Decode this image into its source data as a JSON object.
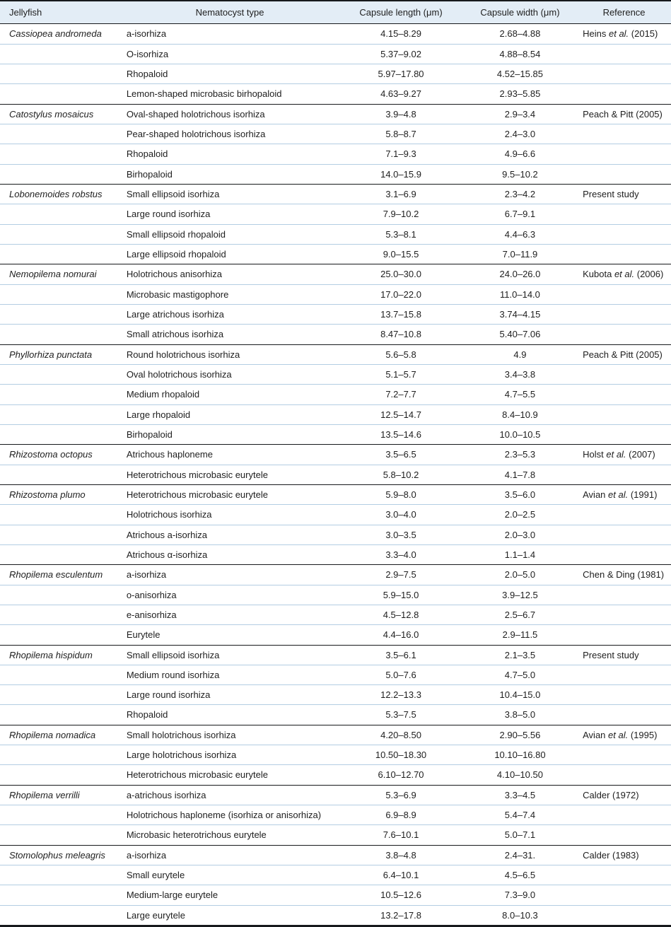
{
  "table": {
    "columns": [
      "Jellyfish",
      "Nematocyst type",
      "Capsule length (μm)",
      "Capsule width (μm)",
      "Reference"
    ],
    "groups": [
      {
        "jellyfish": "Cassiopea andromeda",
        "reference": "Heins et al. (2015)",
        "rows": [
          {
            "type": "a-isorhiza",
            "length": "4.15–8.29",
            "width": "2.68–4.88"
          },
          {
            "type": "O-isorhiza",
            "length": "5.37–9.02",
            "width": "4.88–8.54"
          },
          {
            "type": "Rhopaloid",
            "length": "5.97–17.80",
            "width": "4.52–15.85"
          },
          {
            "type": "Lemon-shaped microbasic birhopaloid",
            "length": "4.63–9.27",
            "width": "2.93–5.85"
          }
        ]
      },
      {
        "jellyfish": "Catostylus mosaicus",
        "reference": "Peach & Pitt (2005)",
        "rows": [
          {
            "type": "Oval-shaped holotrichous isorhiza",
            "length": "3.9–4.8",
            "width": "2.9–3.4"
          },
          {
            "type": "Pear-shaped holotrichous isorhiza",
            "length": "5.8–8.7",
            "width": "2.4–3.0"
          },
          {
            "type": "Rhopaloid",
            "length": "7.1–9.3",
            "width": "4.9–6.6"
          },
          {
            "type": "Birhopaloid",
            "length": "14.0–15.9",
            "width": "9.5–10.2"
          }
        ]
      },
      {
        "jellyfish": "Lobonemoides robstus",
        "reference": "Present study",
        "rows": [
          {
            "type": "Small ellipsoid isorhiza",
            "length": "3.1–6.9",
            "width": "2.3–4.2"
          },
          {
            "type": "Large round isorhiza",
            "length": "7.9–10.2",
            "width": "6.7–9.1"
          },
          {
            "type": "Small ellipsoid rhopaloid",
            "length": "5.3–8.1",
            "width": "4.4–6.3"
          },
          {
            "type": "Large ellipsoid rhopaloid",
            "length": "9.0–15.5",
            "width": "7.0–11.9"
          }
        ]
      },
      {
        "jellyfish": "Nemopilema nomurai",
        "reference": "Kubota et al. (2006)",
        "rows": [
          {
            "type": "Holotrichous anisorhiza",
            "length": "25.0–30.0",
            "width": "24.0–26.0"
          },
          {
            "type": "Microbasic mastigophore",
            "length": "17.0–22.0",
            "width": "11.0–14.0"
          },
          {
            "type": "Large atrichous isorhiza",
            "length": "13.7–15.8",
            "width": "3.74–4.15"
          },
          {
            "type": "Small atrichous isorhiza",
            "length": "8.47–10.8",
            "width": "5.40–7.06"
          }
        ]
      },
      {
        "jellyfish": "Phyllorhiza punctata",
        "reference": "Peach & Pitt (2005)",
        "rows": [
          {
            "type": "Round holotrichous isorhiza",
            "length": "5.6–5.8",
            "width": "4.9"
          },
          {
            "type": "Oval holotrichous isorhiza",
            "length": "5.1–5.7",
            "width": "3.4–3.8"
          },
          {
            "type": "Medium rhopaloid",
            "length": "7.2–7.7",
            "width": "4.7–5.5"
          },
          {
            "type": "Large rhopaloid",
            "length": "12.5–14.7",
            "width": "8.4–10.9"
          },
          {
            "type": "Birhopaloid",
            "length": "13.5–14.6",
            "width": "10.0–10.5"
          }
        ]
      },
      {
        "jellyfish": "Rhizostoma octopus",
        "reference": "Holst et al. (2007)",
        "rows": [
          {
            "type": "Atrichous haploneme",
            "length": "3.5–6.5",
            "width": "2.3–5.3"
          },
          {
            "type": "Heterotrichous microbasic eurytele",
            "length": "5.8–10.2",
            "width": "4.1–7.8"
          }
        ]
      },
      {
        "jellyfish": "Rhizostoma plumo",
        "reference": "Avian et al. (1991)",
        "rows": [
          {
            "type": "Heterotrichous microbasic eurytele",
            "length": "5.9–8.0",
            "width": "3.5–6.0"
          },
          {
            "type": "Holotrichous isorhiza",
            "length": "3.0–4.0",
            "width": "2.0–2.5"
          },
          {
            "type": "Atrichous a-isorhiza",
            "length": "3.0–3.5",
            "width": "2.0–3.0"
          },
          {
            "type": "Atrichous α-isorhiza",
            "length": "3.3–4.0",
            "width": "1.1–1.4"
          }
        ]
      },
      {
        "jellyfish": "Rhopilema esculentum",
        "reference": "Chen & Ding (1981)",
        "rows": [
          {
            "type": "a-isorhiza",
            "length": "2.9–7.5",
            "width": "2.0–5.0"
          },
          {
            "type": "o-anisorhiza",
            "length": "5.9–15.0",
            "width": "3.9–12.5"
          },
          {
            "type": "e-anisorhiza",
            "length": "4.5–12.8",
            "width": "2.5–6.7"
          },
          {
            "type": "Eurytele",
            "length": "4.4–16.0",
            "width": "2.9–11.5"
          }
        ]
      },
      {
        "jellyfish": "Rhopilema hispidum",
        "reference": "Present study",
        "rows": [
          {
            "type": "Small ellipsoid isorhiza",
            "length": "3.5–6.1",
            "width": "2.1–3.5"
          },
          {
            "type": "Medium round isorhiza",
            "length": "5.0–7.6",
            "width": "4.7–5.0"
          },
          {
            "type": "Large round isorhiza",
            "length": "12.2–13.3",
            "width": "10.4–15.0"
          },
          {
            "type": "Rhopaloid",
            "length": "5.3–7.5",
            "width": "3.8–5.0"
          }
        ]
      },
      {
        "jellyfish": "Rhopilema nomadica",
        "reference": "Avian et al. (1995)",
        "rows": [
          {
            "type": "Small holotrichous isorhiza",
            "length": "4.20–8.50",
            "width": "2.90–5.56"
          },
          {
            "type": "Large holotrichous isorhiza",
            "length": "10.50–18.30",
            "width": "10.10–16.80"
          },
          {
            "type": "Heterotrichous microbasic eurytele",
            "length": "6.10–12.70",
            "width": "4.10–10.50"
          }
        ]
      },
      {
        "jellyfish": "Rhopilema verrilli",
        "reference": "Calder (1972)",
        "rows": [
          {
            "type": "a-atrichous isorhiza",
            "length": "5.3–6.9",
            "width": "3.3–4.5"
          },
          {
            "type": "Holotrichous haploneme (isorhiza or anisorhiza)",
            "length": "6.9–8.9",
            "width": "5.4–7.4"
          },
          {
            "type": "Microbasic heterotrichous eurytele",
            "length": "7.6–10.1",
            "width": "5.0–7.1"
          }
        ]
      },
      {
        "jellyfish": "Stomolophus meleagris",
        "reference": "Calder (1983)",
        "rows": [
          {
            "type": "a-isorhiza",
            "length": "3.8–4.8",
            "width": "2.4–31."
          },
          {
            "type": "Small eurytele",
            "length": "6.4–10.1",
            "width": "4.5–6.5"
          },
          {
            "type": "Medium-large eurytele",
            "length": "10.5–12.6",
            "width": "7.3–9.0"
          },
          {
            "type": "Large eurytele",
            "length": "13.2–17.8",
            "width": "8.0–10.3"
          }
        ]
      }
    ]
  },
  "colors": {
    "header_background": "#e3edf6",
    "row_separator": "#b3cde2",
    "group_separator": "#17191c",
    "text": "#1e1e1e"
  }
}
